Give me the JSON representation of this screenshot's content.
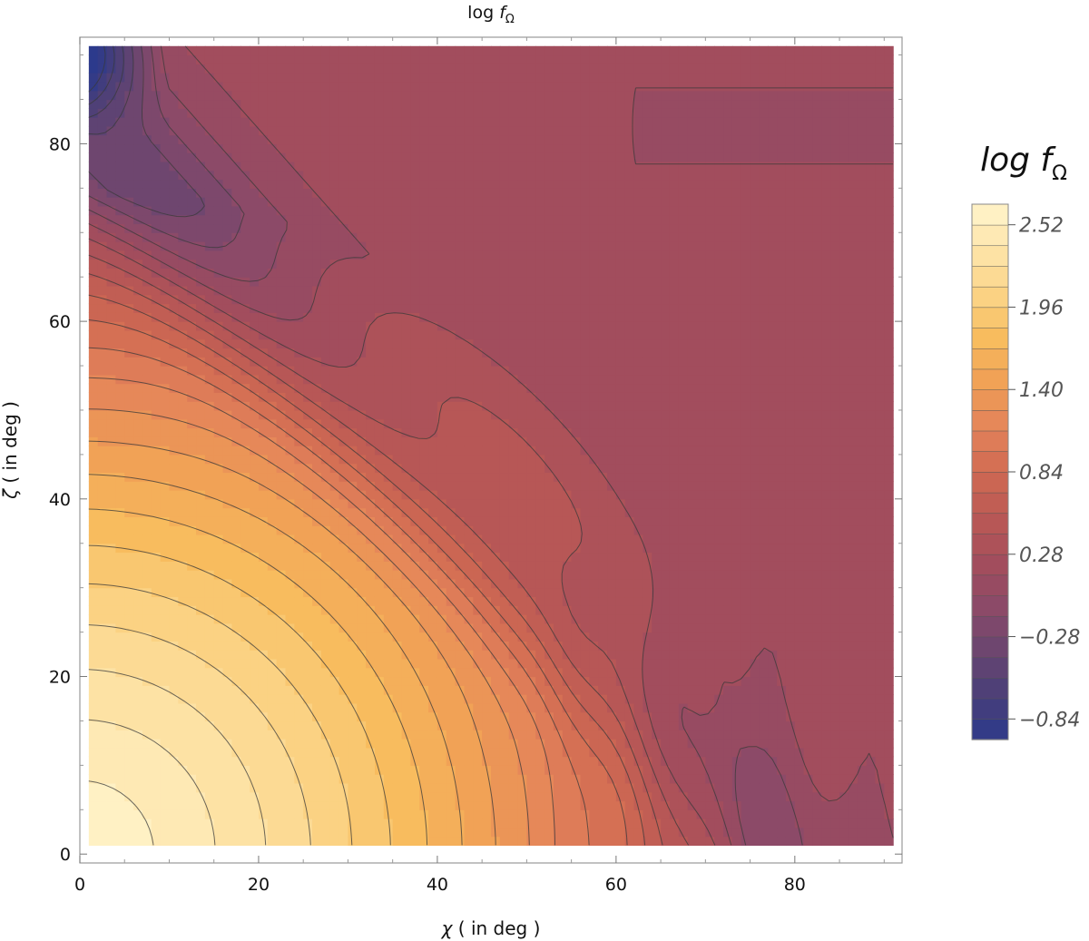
{
  "chart_data": {
    "type": "heatmap",
    "subtype": "filled-contour",
    "title": {
      "base": "log ",
      "var": "f",
      "sub": "Ω"
    },
    "xlabel": {
      "sym": "χ",
      "rest": " ( in deg )"
    },
    "ylabel": {
      "sym": "ζ",
      "rest": " ( in deg )"
    },
    "xlim": [
      0,
      92
    ],
    "ylim": [
      -1,
      92
    ],
    "data_extent": {
      "x": [
        1,
        91
      ],
      "y": [
        1,
        91
      ]
    },
    "x_ticks": [
      "0",
      "20",
      "40",
      "60",
      "80"
    ],
    "x_tick_values": [
      0,
      20,
      40,
      60,
      80
    ],
    "y_ticks": [
      "0",
      "20",
      "40",
      "60",
      "80"
    ],
    "y_tick_values": [
      0,
      20,
      40,
      60,
      80
    ],
    "colorbar": {
      "title": {
        "base": "log ",
        "var": "f",
        "sub": "Ω"
      },
      "min": -0.98,
      "max": 2.66,
      "step": 0.14,
      "tick_labels": [
        "2.52",
        "1.96",
        "1.40",
        "0.84",
        "0.28",
        "−0.28",
        "−0.84"
      ],
      "tick_values": [
        2.52,
        1.96,
        1.4,
        0.84,
        0.28,
        -0.28,
        -0.84
      ]
    },
    "colormap": [
      "#2c3a8c",
      "#4a3f78",
      "#6b4670",
      "#8c4a68",
      "#a44d5c",
      "#bb5955",
      "#d06a52",
      "#e4845a",
      "#f0a055",
      "#f8bc5e",
      "#fbd486",
      "#fde4aa",
      "#fff5cc"
    ],
    "grid": false,
    "legend": "colorbar-right"
  }
}
